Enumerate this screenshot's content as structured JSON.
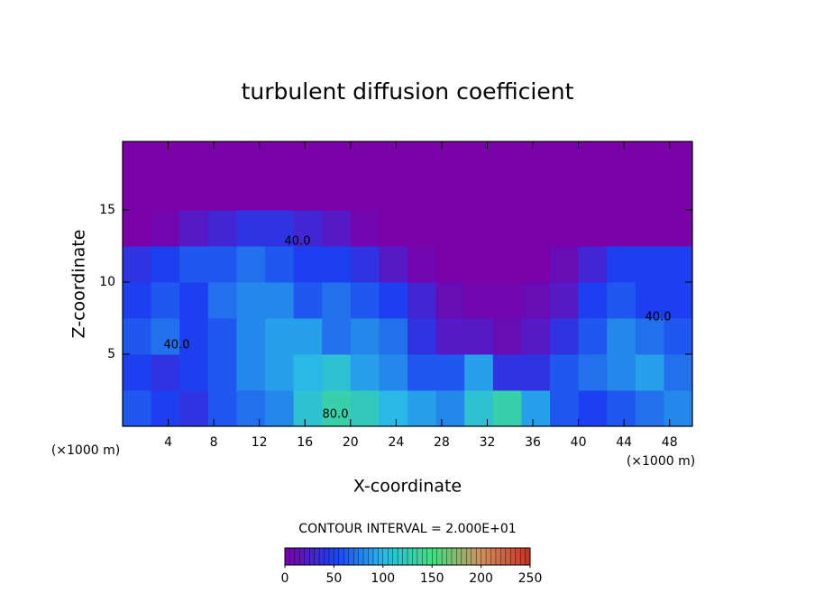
{
  "chart_data": {
    "type": "heatmap",
    "title": "turbulent diffusion coefficient",
    "x_label": "X-coordinate",
    "y_label": "Z-coordinate",
    "x_unit_label": "(×1000 m)",
    "xlim": [
      0,
      50
    ],
    "ylim": [
      0,
      19.75
    ],
    "xticks": [
      4,
      8,
      12,
      16,
      20,
      24,
      28,
      32,
      36,
      40,
      44,
      48
    ],
    "yticks": [
      5,
      10,
      15
    ],
    "x": [
      1.25,
      3.75,
      6.25,
      8.75,
      11.25,
      13.75,
      16.25,
      18.75,
      21.25,
      23.75,
      26.25,
      28.75,
      31.25,
      33.75,
      36.25,
      38.75,
      41.25,
      43.75,
      46.25,
      48.75
    ],
    "y": [
      1.25,
      3.75,
      6.25,
      8.75,
      11.25,
      13.75,
      16.25,
      18.75
    ],
    "z": [
      [
        60,
        50,
        40,
        60,
        70,
        80,
        110,
        130,
        120,
        100,
        90,
        80,
        110,
        130,
        90,
        60,
        50,
        60,
        70,
        80
      ],
      [
        50,
        40,
        50,
        60,
        80,
        90,
        100,
        110,
        90,
        80,
        60,
        60,
        90,
        40,
        40,
        60,
        70,
        80,
        90,
        70
      ],
      [
        60,
        70,
        50,
        60,
        80,
        90,
        90,
        70,
        80,
        70,
        40,
        20,
        20,
        10,
        20,
        40,
        60,
        80,
        70,
        60
      ],
      [
        50,
        60,
        50,
        70,
        80,
        80,
        60,
        70,
        60,
        50,
        30,
        10,
        5,
        5,
        10,
        20,
        50,
        60,
        50,
        50
      ],
      [
        40,
        50,
        60,
        60,
        70,
        60,
        50,
        50,
        40,
        20,
        5,
        0,
        0,
        0,
        0,
        10,
        30,
        50,
        50,
        50
      ],
      [
        0,
        5,
        20,
        30,
        40,
        40,
        30,
        20,
        5,
        0,
        0,
        0,
        0,
        0,
        0,
        0,
        0,
        0,
        0,
        0
      ],
      [
        0,
        0,
        0,
        0,
        0,
        0,
        0,
        0,
        0,
        0,
        0,
        0,
        0,
        0,
        0,
        0,
        0,
        0,
        0,
        0
      ],
      [
        0,
        0,
        0,
        0,
        0,
        0,
        0,
        0,
        0,
        0,
        0,
        0,
        0,
        0,
        0,
        0,
        0,
        0,
        0,
        0
      ]
    ],
    "clim": [
      0,
      250
    ],
    "colorscale": [
      "#7b00a8",
      "#1c40f0",
      "#2ab8e8",
      "#40e080",
      "#d09060",
      "#c83020"
    ],
    "colorbar_ticks": [
      0,
      50,
      100,
      150,
      200,
      250
    ],
    "contour_interval_label": "CONTOUR INTERVAL = 2.000E+01",
    "annotations": [
      "40.0",
      "40.0",
      "40.0",
      "80.0"
    ]
  }
}
